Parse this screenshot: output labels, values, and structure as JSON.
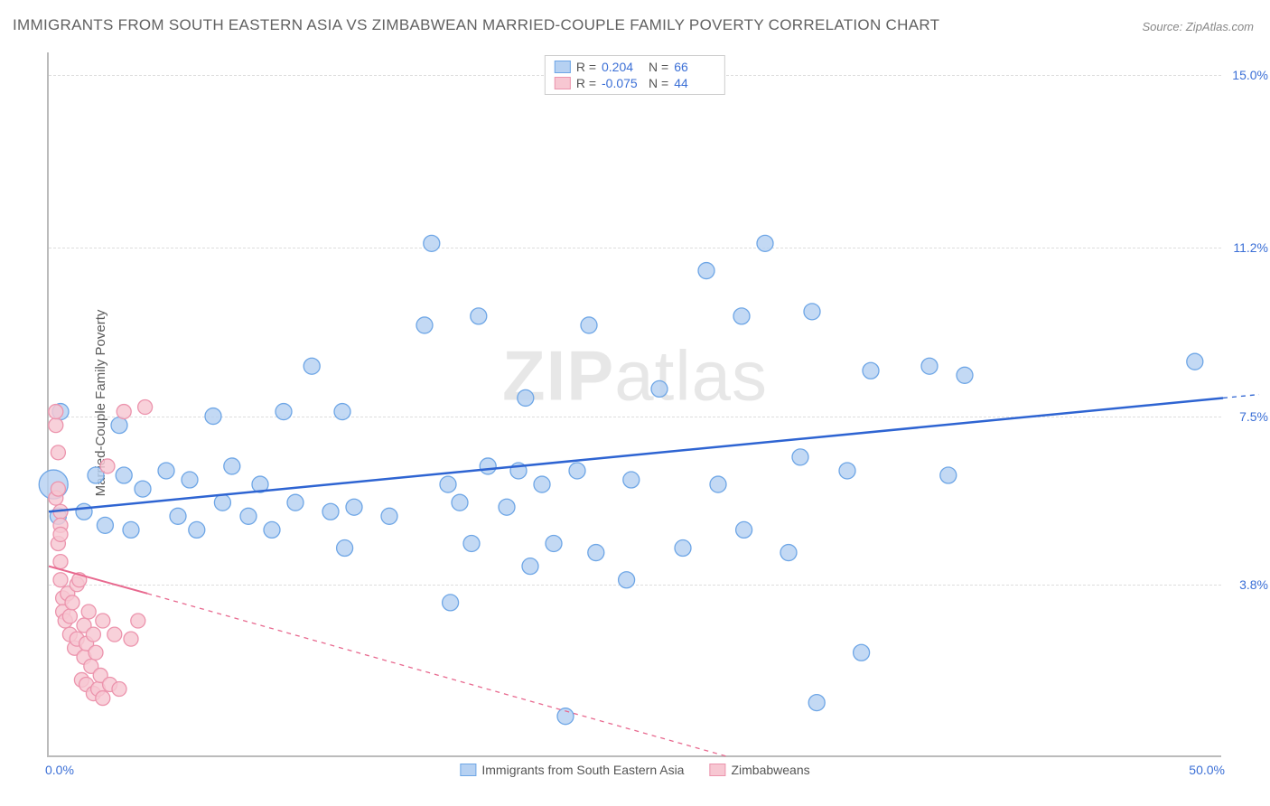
{
  "title": "IMMIGRANTS FROM SOUTH EASTERN ASIA VS ZIMBABWEAN MARRIED-COUPLE FAMILY POVERTY CORRELATION CHART",
  "source": "Source: ZipAtlas.com",
  "ylabel": "Married-Couple Family Poverty",
  "watermark_a": "ZIP",
  "watermark_b": "atlas",
  "chart": {
    "type": "scatter",
    "xlim": [
      0,
      50
    ],
    "ylim": [
      0,
      15.5
    ],
    "xticks": [
      {
        "v": 0,
        "label": "0.0%"
      },
      {
        "v": 50,
        "label": "50.0%"
      }
    ],
    "yticks": [
      {
        "v": 3.8,
        "label": "3.8%"
      },
      {
        "v": 7.5,
        "label": "7.5%"
      },
      {
        "v": 11.2,
        "label": "11.2%"
      },
      {
        "v": 15.0,
        "label": "15.0%"
      }
    ],
    "grid_color": "#dddddd",
    "background_color": "#ffffff",
    "axis_color": "#bbbbbb",
    "tick_label_color": "#3b6fd6",
    "series": [
      {
        "name": "Immigrants from South Eastern Asia",
        "fill": "#b6d1f2",
        "stroke": "#6ea6e6",
        "opacity": 0.82,
        "r_default": 9,
        "trend": {
          "x1": 0,
          "y1": 5.4,
          "x2": 50,
          "y2": 7.9,
          "color": "#2e64d2",
          "width": 2.5,
          "dash": "none",
          "dash_ext": "5,5"
        },
        "stats": {
          "R": "0.204",
          "N": "66"
        },
        "points": [
          {
            "x": 0.2,
            "y": 6.0,
            "r": 16
          },
          {
            "x": 0.4,
            "y": 5.3
          },
          {
            "x": 0.5,
            "y": 7.6
          },
          {
            "x": 1.5,
            "y": 5.4
          },
          {
            "x": 2.0,
            "y": 6.2
          },
          {
            "x": 2.4,
            "y": 5.1
          },
          {
            "x": 3.0,
            "y": 7.3
          },
          {
            "x": 3.2,
            "y": 6.2
          },
          {
            "x": 3.5,
            "y": 5.0
          },
          {
            "x": 4.0,
            "y": 5.9
          },
          {
            "x": 5.0,
            "y": 6.3
          },
          {
            "x": 5.5,
            "y": 5.3
          },
          {
            "x": 6.0,
            "y": 6.1
          },
          {
            "x": 6.3,
            "y": 5.0
          },
          {
            "x": 7.0,
            "y": 7.5
          },
          {
            "x": 7.4,
            "y": 5.6
          },
          {
            "x": 7.8,
            "y": 6.4
          },
          {
            "x": 8.5,
            "y": 5.3
          },
          {
            "x": 9.0,
            "y": 6.0
          },
          {
            "x": 9.5,
            "y": 5.0
          },
          {
            "x": 10.0,
            "y": 7.6
          },
          {
            "x": 10.5,
            "y": 5.6
          },
          {
            "x": 11.2,
            "y": 8.6
          },
          {
            "x": 12.0,
            "y": 5.4
          },
          {
            "x": 12.5,
            "y": 7.6
          },
          {
            "x": 12.6,
            "y": 4.6
          },
          {
            "x": 13.0,
            "y": 5.5
          },
          {
            "x": 14.5,
            "y": 5.3
          },
          {
            "x": 16.0,
            "y": 9.5
          },
          {
            "x": 16.3,
            "y": 11.3
          },
          {
            "x": 17.0,
            "y": 6.0
          },
          {
            "x": 17.1,
            "y": 3.4
          },
          {
            "x": 17.5,
            "y": 5.6
          },
          {
            "x": 18.0,
            "y": 4.7
          },
          {
            "x": 18.3,
            "y": 9.7
          },
          {
            "x": 18.7,
            "y": 6.4
          },
          {
            "x": 19.5,
            "y": 5.5
          },
          {
            "x": 20.0,
            "y": 6.3
          },
          {
            "x": 20.3,
            "y": 7.9
          },
          {
            "x": 20.5,
            "y": 4.2
          },
          {
            "x": 21.0,
            "y": 6.0
          },
          {
            "x": 21.5,
            "y": 4.7
          },
          {
            "x": 22.0,
            "y": 0.9
          },
          {
            "x": 22.5,
            "y": 6.3
          },
          {
            "x": 23.0,
            "y": 9.5
          },
          {
            "x": 23.3,
            "y": 4.5
          },
          {
            "x": 24.6,
            "y": 3.9
          },
          {
            "x": 24.8,
            "y": 6.1
          },
          {
            "x": 26.0,
            "y": 8.1
          },
          {
            "x": 27.0,
            "y": 4.6
          },
          {
            "x": 28.0,
            "y": 10.7
          },
          {
            "x": 28.5,
            "y": 6.0
          },
          {
            "x": 29.5,
            "y": 9.7
          },
          {
            "x": 29.6,
            "y": 5.0
          },
          {
            "x": 30.5,
            "y": 11.3
          },
          {
            "x": 31.5,
            "y": 4.5
          },
          {
            "x": 32.0,
            "y": 6.6
          },
          {
            "x": 32.5,
            "y": 9.8
          },
          {
            "x": 32.7,
            "y": 1.2
          },
          {
            "x": 34.0,
            "y": 6.3
          },
          {
            "x": 34.6,
            "y": 2.3
          },
          {
            "x": 35.0,
            "y": 8.5
          },
          {
            "x": 37.5,
            "y": 8.6
          },
          {
            "x": 38.3,
            "y": 6.2
          },
          {
            "x": 39.0,
            "y": 8.4
          },
          {
            "x": 48.8,
            "y": 8.7
          }
        ]
      },
      {
        "name": "Zimbabweans",
        "fill": "#f7c7d2",
        "stroke": "#ec94ad",
        "opacity": 0.82,
        "r_default": 8,
        "trend": {
          "x1": 0,
          "y1": 4.2,
          "x2": 4.2,
          "y2": 3.6,
          "ext_x2": 29,
          "ext_y2": 0,
          "color": "#e8698f",
          "width": 2,
          "dash": "none",
          "dash_ext": "5,5"
        },
        "stats": {
          "R": "-0.075",
          "N": "44"
        },
        "points": [
          {
            "x": 0.3,
            "y": 7.3
          },
          {
            "x": 0.3,
            "y": 7.6
          },
          {
            "x": 0.3,
            "y": 5.7
          },
          {
            "x": 0.4,
            "y": 6.7
          },
          {
            "x": 0.4,
            "y": 5.9
          },
          {
            "x": 0.5,
            "y": 5.4
          },
          {
            "x": 0.4,
            "y": 4.7
          },
          {
            "x": 0.5,
            "y": 4.3
          },
          {
            "x": 0.5,
            "y": 3.9
          },
          {
            "x": 0.6,
            "y": 3.5
          },
          {
            "x": 0.6,
            "y": 3.2
          },
          {
            "x": 0.7,
            "y": 3.0
          },
          {
            "x": 0.5,
            "y": 5.1
          },
          {
            "x": 0.5,
            "y": 4.9
          },
          {
            "x": 0.8,
            "y": 3.6
          },
          {
            "x": 0.9,
            "y": 3.1
          },
          {
            "x": 0.9,
            "y": 2.7
          },
          {
            "x": 1.0,
            "y": 3.4
          },
          {
            "x": 1.1,
            "y": 2.4
          },
          {
            "x": 1.2,
            "y": 3.8
          },
          {
            "x": 1.2,
            "y": 2.6
          },
          {
            "x": 1.3,
            "y": 3.9
          },
          {
            "x": 1.4,
            "y": 1.7
          },
          {
            "x": 1.5,
            "y": 2.2
          },
          {
            "x": 1.5,
            "y": 2.9
          },
          {
            "x": 1.6,
            "y": 2.5
          },
          {
            "x": 1.6,
            "y": 1.6
          },
          {
            "x": 1.7,
            "y": 3.2
          },
          {
            "x": 1.8,
            "y": 2.0
          },
          {
            "x": 1.9,
            "y": 1.4
          },
          {
            "x": 1.9,
            "y": 2.7
          },
          {
            "x": 2.1,
            "y": 1.5
          },
          {
            "x": 2.0,
            "y": 2.3
          },
          {
            "x": 2.2,
            "y": 1.8
          },
          {
            "x": 2.3,
            "y": 3.0
          },
          {
            "x": 2.3,
            "y": 1.3
          },
          {
            "x": 2.5,
            "y": 6.4
          },
          {
            "x": 2.6,
            "y": 1.6
          },
          {
            "x": 2.8,
            "y": 2.7
          },
          {
            "x": 3.0,
            "y": 1.5
          },
          {
            "x": 3.2,
            "y": 7.6
          },
          {
            "x": 3.5,
            "y": 2.6
          },
          {
            "x": 3.8,
            "y": 3.0
          },
          {
            "x": 4.1,
            "y": 7.7
          }
        ]
      }
    ]
  }
}
